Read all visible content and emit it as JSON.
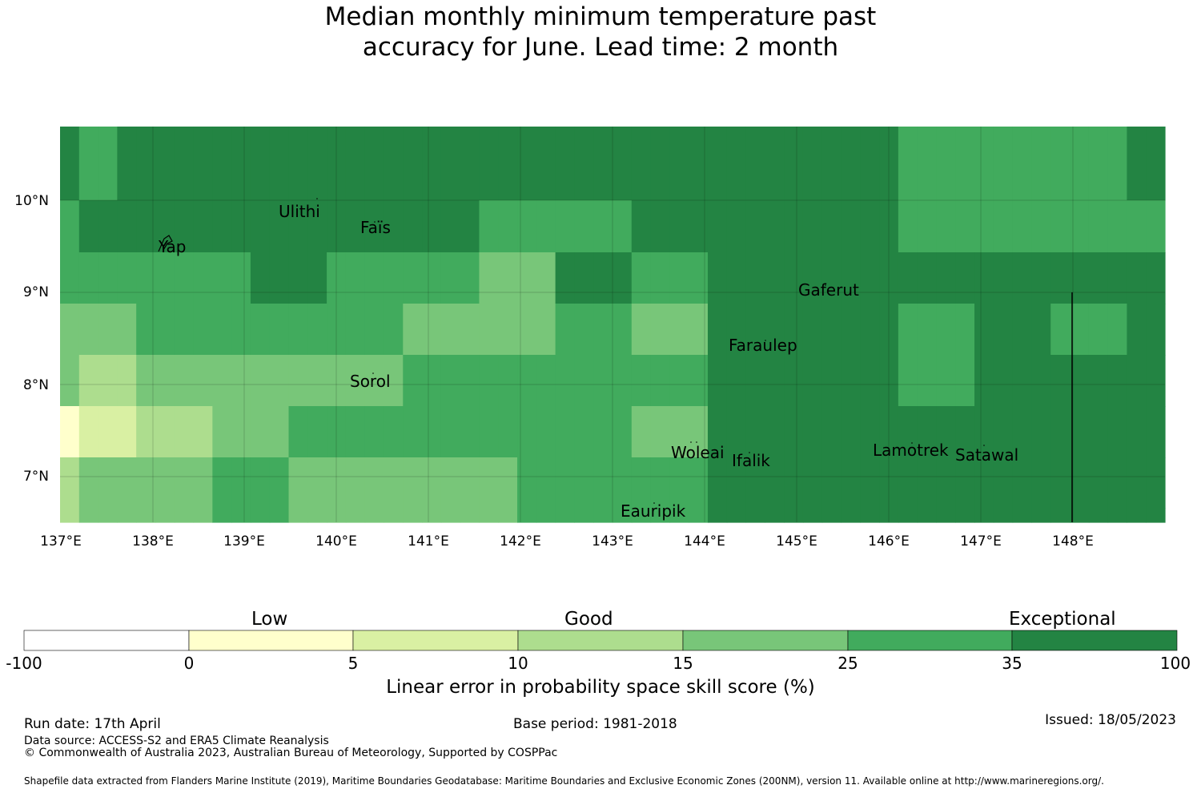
{
  "title": {
    "line1": "Median monthly minimum temperature past",
    "line2": "accuracy for June. Lead time: 2 month"
  },
  "map": {
    "lon_ticks": [
      "137°E",
      "138°E",
      "139°E",
      "140°E",
      "141°E",
      "142°E",
      "143°E",
      "144°E",
      "145°E",
      "146°E",
      "147°E",
      "148°E"
    ],
    "lat_ticks": [
      "10°N",
      "9°N",
      "8°N",
      "7°N"
    ],
    "places": [
      "Ulithi",
      "Faïs",
      "Yap",
      "Gaferut",
      "Faraulep",
      "Sorol",
      "Woleai",
      "Ifalik",
      "Lamotrek",
      "Satawal",
      "Eauripik"
    ],
    "colors": [
      "#ffffcc",
      "#d9f0a3",
      "#addd8e",
      "#78c679",
      "#41ab5d",
      "#238443"
    ],
    "grid": [
      [
        5,
        4,
        4,
        5,
        5,
        5,
        5,
        5,
        5,
        5,
        5,
        5,
        5,
        5,
        5,
        5,
        5,
        5,
        5,
        5,
        5,
        5,
        5,
        5,
        5,
        5,
        5,
        5,
        5,
        5,
        5,
        5,
        5,
        5,
        5,
        5,
        5,
        5,
        5,
        5,
        5,
        5,
        5,
        5,
        4,
        4,
        4,
        4,
        4,
        4,
        4,
        4,
        4,
        4,
        4,
        4,
        5,
        5
      ],
      [
        4,
        5,
        5,
        5,
        5,
        5,
        5,
        5,
        5,
        5,
        5,
        5,
        5,
        5,
        5,
        5,
        5,
        5,
        5,
        5,
        5,
        5,
        4,
        4,
        4,
        4,
        4,
        4,
        4,
        4,
        5,
        5,
        5,
        5,
        5,
        5,
        5,
        5,
        5,
        5,
        5,
        5,
        5,
        5,
        4,
        4,
        4,
        4,
        4,
        4,
        4,
        4,
        4,
        4,
        4,
        4,
        4,
        4
      ],
      [
        4,
        4,
        4,
        4,
        4,
        4,
        4,
        4,
        4,
        4,
        5,
        5,
        5,
        5,
        4,
        4,
        4,
        4,
        4,
        4,
        4,
        4,
        3,
        3,
        3,
        3,
        5,
        5,
        5,
        5,
        4,
        4,
        4,
        4,
        5,
        5,
        5,
        5,
        5,
        5,
        5,
        5,
        5,
        5,
        5,
        5,
        5,
        5,
        5,
        5,
        5,
        5,
        5,
        5,
        5,
        5,
        5,
        5
      ],
      [
        3,
        3,
        3,
        3,
        4,
        4,
        4,
        4,
        4,
        4,
        4,
        4,
        4,
        4,
        4,
        4,
        4,
        4,
        3,
        3,
        3,
        3,
        3,
        3,
        3,
        3,
        4,
        4,
        4,
        4,
        3,
        3,
        3,
        3,
        5,
        5,
        5,
        5,
        5,
        5,
        5,
        5,
        5,
        5,
        4,
        4,
        4,
        4,
        5,
        5,
        5,
        5,
        4,
        4,
        4,
        4,
        5,
        5
      ],
      [
        3,
        2,
        2,
        2,
        3,
        3,
        3,
        3,
        3,
        3,
        3,
        3,
        3,
        3,
        3,
        3,
        3,
        3,
        4,
        4,
        4,
        4,
        4,
        4,
        4,
        4,
        4,
        4,
        4,
        4,
        4,
        4,
        4,
        4,
        5,
        5,
        5,
        5,
        5,
        5,
        5,
        5,
        5,
        5,
        4,
        4,
        4,
        4,
        5,
        5,
        5,
        5,
        5,
        5,
        5,
        5,
        5,
        5
      ],
      [
        0,
        1,
        1,
        1,
        2,
        2,
        2,
        2,
        3,
        3,
        3,
        3,
        4,
        4,
        4,
        4,
        4,
        4,
        4,
        4,
        4,
        4,
        4,
        4,
        4,
        4,
        4,
        4,
        4,
        4,
        3,
        3,
        3,
        3,
        5,
        5,
        5,
        5,
        5,
        5,
        5,
        5,
        5,
        5,
        5,
        5,
        5,
        5,
        5,
        5,
        5,
        5,
        5,
        5,
        5,
        5,
        5,
        5
      ],
      [
        2,
        3,
        3,
        3,
        3,
        3,
        3,
        3,
        4,
        4,
        4,
        4,
        3,
        3,
        3,
        3,
        3,
        3,
        3,
        3,
        3,
        3,
        3,
        3,
        4,
        4,
        4,
        4,
        4,
        4,
        4,
        4,
        4,
        4,
        5,
        5,
        5,
        5,
        5,
        5,
        5,
        5,
        5,
        5,
        5,
        5,
        5,
        5,
        5,
        5,
        5,
        5,
        5,
        5,
        5,
        5,
        5,
        5
      ],
      [
        2,
        3,
        3,
        3,
        3,
        3,
        3,
        3,
        4,
        4,
        4,
        4,
        3,
        3,
        3,
        3,
        3,
        3,
        3,
        3,
        3,
        3,
        3,
        3,
        4,
        4,
        4,
        4,
        4,
        4,
        4,
        4,
        4,
        4,
        5,
        5,
        5,
        5,
        5,
        5,
        5,
        5,
        5,
        5,
        5,
        5,
        5,
        5,
        5,
        5,
        5,
        5,
        5,
        5,
        5,
        5,
        5,
        5
      ]
    ]
  },
  "colorbar": {
    "headings": [
      "Low",
      "Good",
      "Exceptional"
    ],
    "ticks": [
      "-100",
      "0",
      "5",
      "10",
      "15",
      "25",
      "35",
      "100"
    ],
    "colors": [
      "#ffffff",
      "#ffffcc",
      "#d9f0a3",
      "#addd8e",
      "#78c679",
      "#41ab5d",
      "#238443"
    ],
    "label": "Linear error in probability space skill score (%)"
  },
  "footer": {
    "run_date": "Run date: 17th April",
    "base_period": "Base period: 1981-2018",
    "issued": "Issued: 18/05/2023",
    "data_source": "Data source: ACCESS-S2 and ERA5 Climate Reanalysis",
    "copyright": "© Commonwealth of Australia 2023, Australian Bureau of Meteorology, Supported by COSPPac",
    "shapefile": "Shapefile data extracted from Flanders Marine Institute (2019), Maritime Boundaries Geodatabase: Maritime Boundaries and Exclusive Economic Zones (200NM), version 11. Available online at http://www.marineregions.org/."
  }
}
